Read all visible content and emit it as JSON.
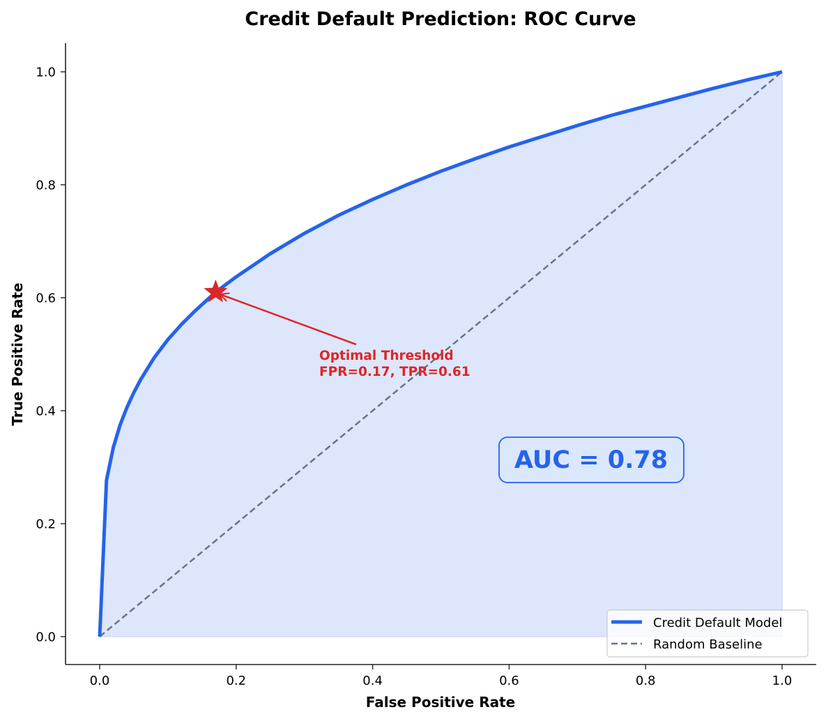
{
  "chart_data": {
    "type": "line",
    "title": "Credit Default Prediction: ROC Curve",
    "xlabel": "False Positive Rate",
    "ylabel": "True Positive Rate",
    "xlim": [
      -0.05,
      1.05
    ],
    "ylim": [
      -0.05,
      1.05
    ],
    "xticks": [
      0.0,
      0.2,
      0.4,
      0.6,
      0.8,
      1.0
    ],
    "xtick_labels": [
      "0.0",
      "0.2",
      "0.4",
      "0.6",
      "0.8",
      "1.0"
    ],
    "yticks": [
      0.0,
      0.2,
      0.4,
      0.6,
      0.8,
      1.0
    ],
    "ytick_labels": [
      "0.0",
      "0.2",
      "0.4",
      "0.6",
      "0.8",
      "1.0"
    ],
    "grid": false,
    "legend_position": "lower right",
    "series": [
      {
        "name": "Credit Default Model",
        "style": "solid",
        "color": "#2563eb",
        "fill_under": true,
        "fill_color": "#dde6fb",
        "x": [
          0.0,
          0.01,
          0.02,
          0.03,
          0.04,
          0.05,
          0.06,
          0.08,
          0.1,
          0.12,
          0.14,
          0.17,
          0.2,
          0.25,
          0.3,
          0.35,
          0.4,
          0.45,
          0.5,
          0.55,
          0.6,
          0.65,
          0.7,
          0.75,
          0.8,
          0.85,
          0.9,
          0.95,
          1.0
        ],
        "y": [
          0.0,
          0.277,
          0.335,
          0.375,
          0.406,
          0.432,
          0.455,
          0.494,
          0.526,
          0.553,
          0.577,
          0.61,
          0.637,
          0.678,
          0.714,
          0.746,
          0.774,
          0.8,
          0.824,
          0.846,
          0.867,
          0.886,
          0.905,
          0.923,
          0.939,
          0.955,
          0.971,
          0.986,
          1.0
        ]
      },
      {
        "name": "Random Baseline",
        "style": "dashed",
        "color": "#64748b",
        "x": [
          0.0,
          1.0
        ],
        "y": [
          0.0,
          1.0
        ]
      }
    ],
    "annotations": [
      {
        "type": "marker",
        "marker": "star",
        "x": 0.17,
        "y": 0.61,
        "color": "#dc2626"
      },
      {
        "type": "arrow_text",
        "text_lines": [
          "Optimal Threshold",
          "FPR=0.17, TPR=0.61"
        ],
        "text_x": 0.32,
        "text_y": 0.46,
        "arrow_to": [
          0.17,
          0.61
        ],
        "color": "#dc2626"
      },
      {
        "type": "boxed_text",
        "text": "AUC = 0.78",
        "x": 0.72,
        "y": 0.315,
        "color": "#2563eb",
        "box_fill": "#dbe7fd",
        "box_edge": "#2563eb"
      }
    ]
  },
  "legend": {
    "items": [
      {
        "label": "Credit Default Model",
        "style": "solid",
        "color": "#2563eb"
      },
      {
        "label": "Random Baseline",
        "style": "dashed",
        "color": "#64748b"
      }
    ]
  }
}
